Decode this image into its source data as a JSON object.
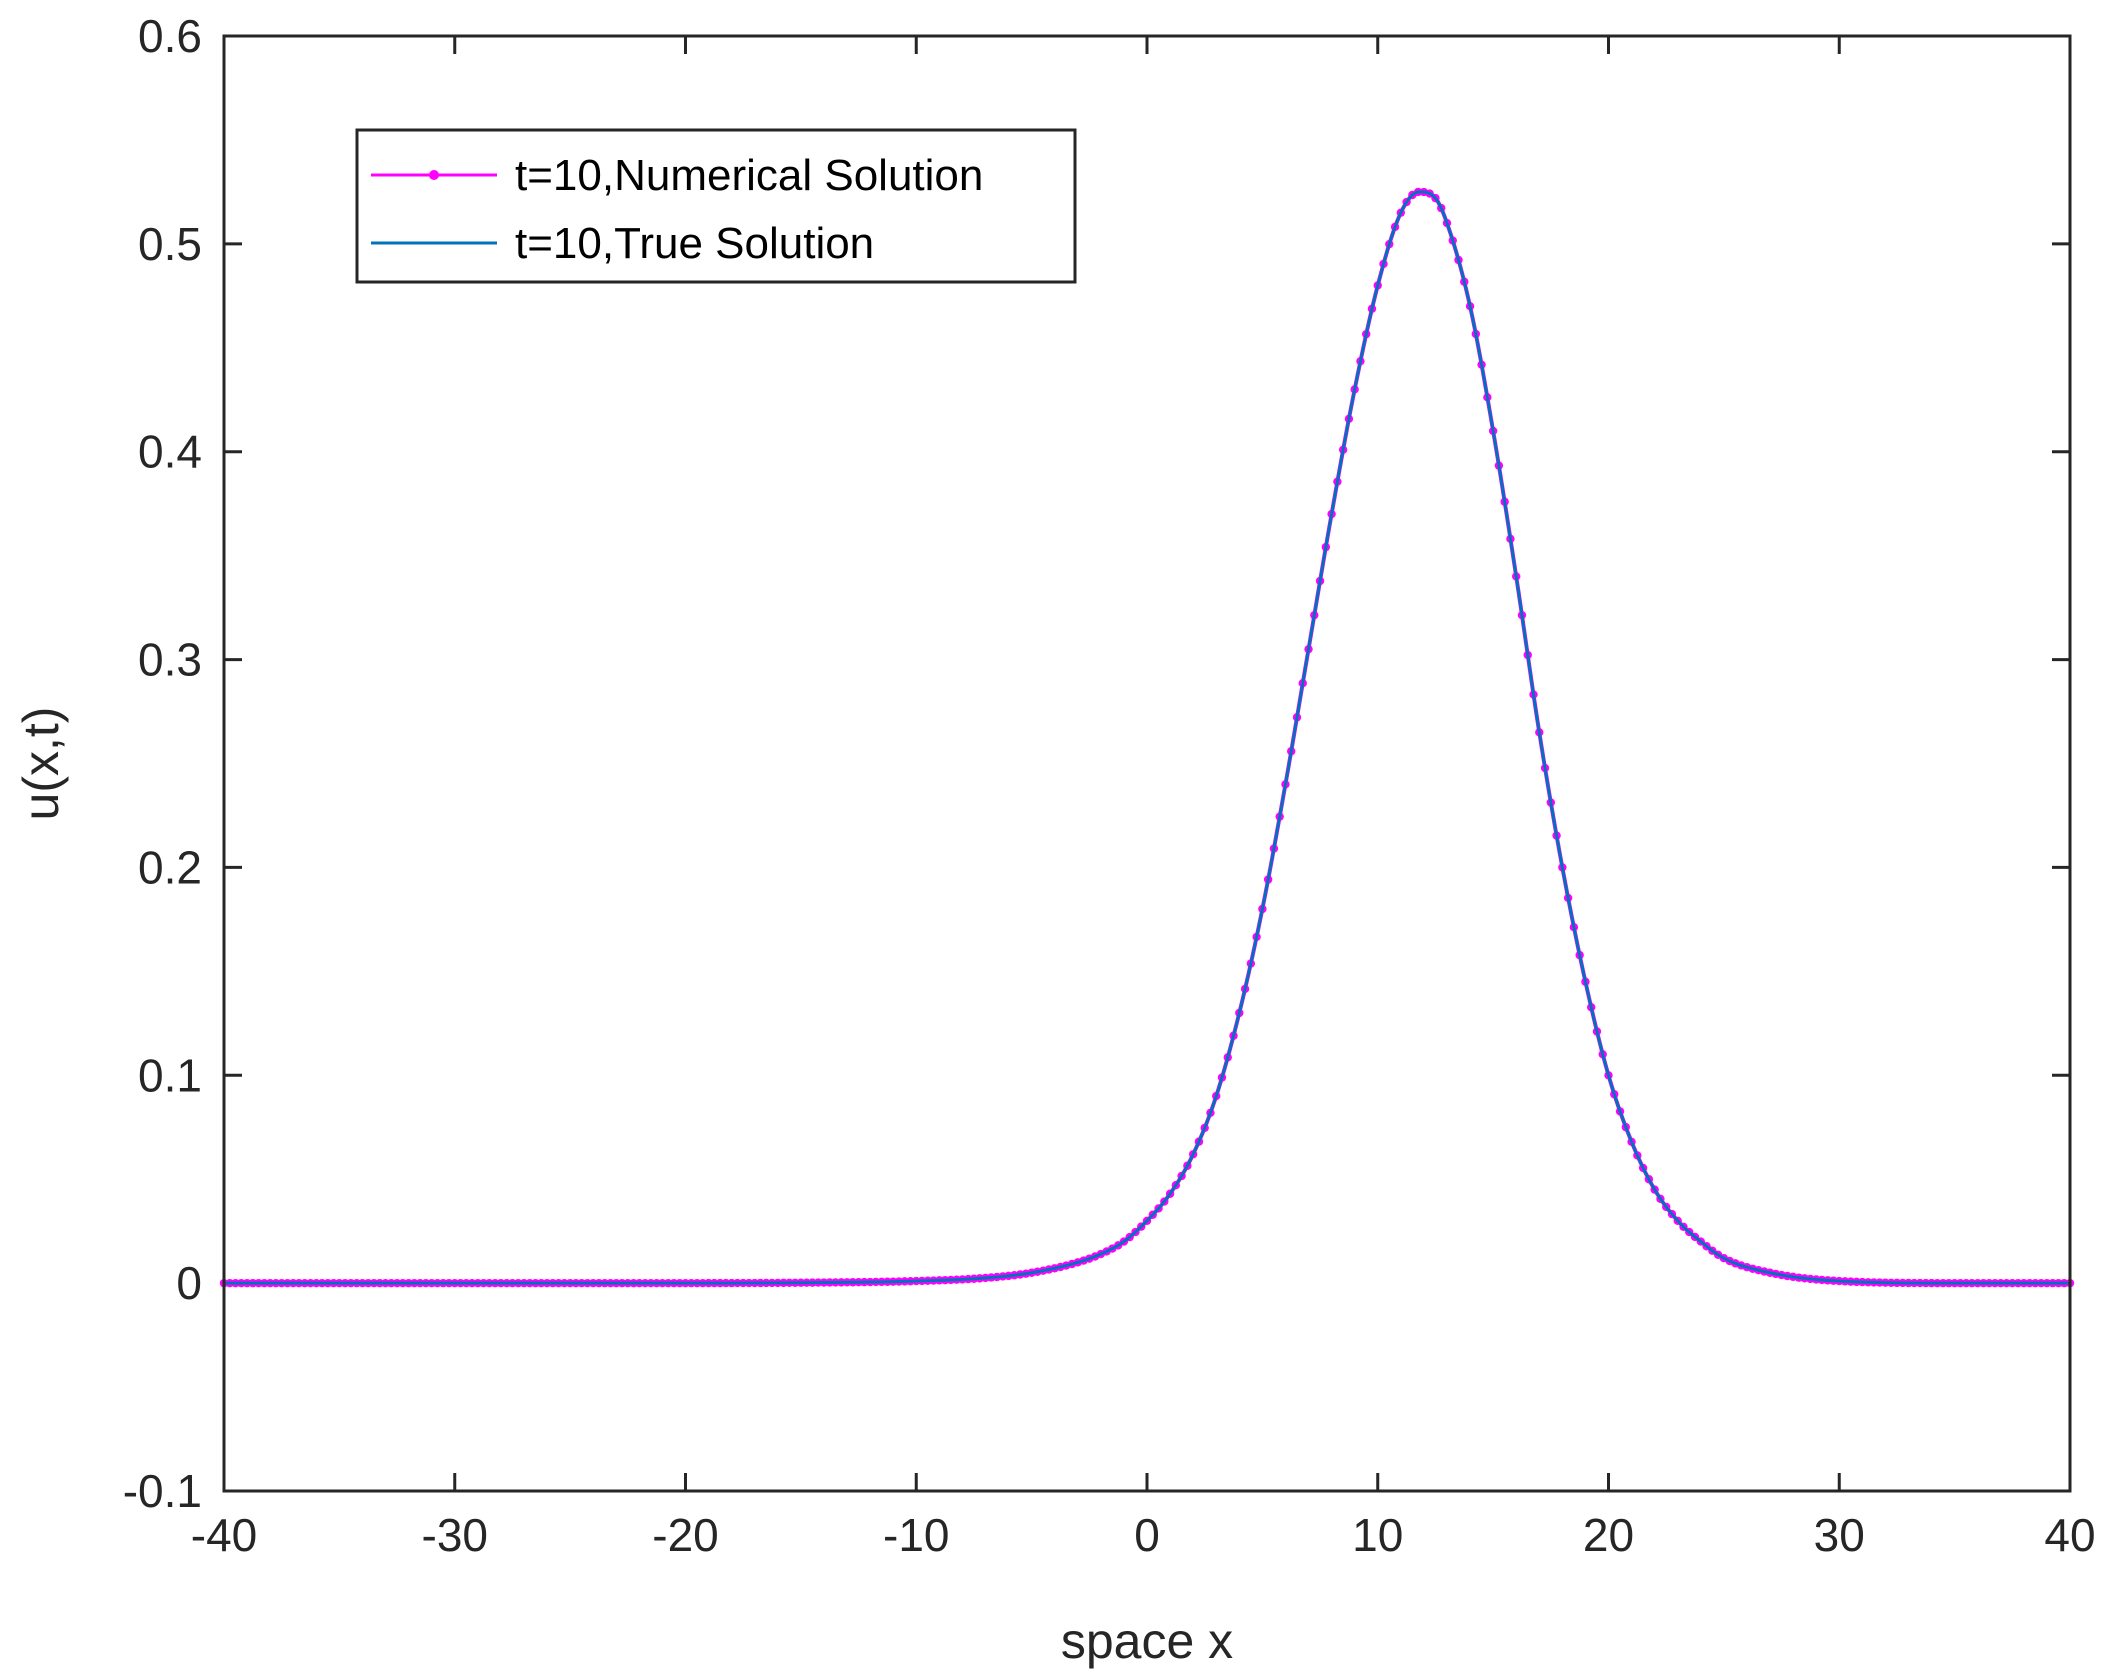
{
  "chart_data": {
    "type": "line",
    "title": "",
    "xlabel": "space x",
    "ylabel": "u(x,t)",
    "xlim": [
      -40,
      40
    ],
    "ylim": [
      -0.1,
      0.6
    ],
    "xticks": [
      -40,
      -30,
      -20,
      -10,
      0,
      10,
      20,
      30,
      40
    ],
    "yticks": [
      -0.1,
      0,
      0.1,
      0.2,
      0.3,
      0.4,
      0.5,
      0.6
    ],
    "xtick_labels": [
      "-40",
      "-30",
      "-20",
      "-10",
      "0",
      "10",
      "20",
      "30",
      "40"
    ],
    "ytick_labels": [
      "-0.1",
      "0",
      "0.1",
      "0.2",
      "0.3",
      "0.4",
      "0.5",
      "0.6"
    ],
    "grid": false,
    "legend_position": "top-left",
    "series": [
      {
        "name": "t=10,Numerical Solution",
        "color": "#ff00ff",
        "style": "line-with-dot-markers",
        "x": [
          -40,
          -30,
          -20,
          -15,
          -10,
          -7,
          -5,
          -3,
          -2,
          -1,
          0,
          1,
          2,
          3,
          4,
          5,
          6,
          7,
          8,
          9,
          10,
          11,
          11.8,
          12.5,
          13,
          14,
          15,
          16,
          17,
          18,
          19,
          20,
          21,
          22,
          23,
          24,
          25,
          27,
          30,
          35,
          40
        ],
        "y": [
          0,
          0,
          0,
          0.0002,
          0.001,
          0.0025,
          0.005,
          0.01,
          0.014,
          0.02,
          0.03,
          0.043,
          0.062,
          0.09,
          0.13,
          0.18,
          0.24,
          0.305,
          0.37,
          0.43,
          0.48,
          0.515,
          0.525,
          0.522,
          0.51,
          0.47,
          0.41,
          0.34,
          0.265,
          0.2,
          0.145,
          0.1,
          0.068,
          0.045,
          0.03,
          0.02,
          0.012,
          0.005,
          0.001,
          0,
          0
        ]
      },
      {
        "name": "t=10,True Solution",
        "color": "#0072bd",
        "style": "line",
        "x": [
          -40,
          -30,
          -20,
          -15,
          -10,
          -7,
          -5,
          -3,
          -2,
          -1,
          0,
          1,
          2,
          3,
          4,
          5,
          6,
          7,
          8,
          9,
          10,
          11,
          11.8,
          12.5,
          13,
          14,
          15,
          16,
          17,
          18,
          19,
          20,
          21,
          22,
          23,
          24,
          25,
          27,
          30,
          35,
          40
        ],
        "y": [
          0,
          0,
          0,
          0.0002,
          0.001,
          0.0025,
          0.005,
          0.01,
          0.014,
          0.02,
          0.03,
          0.043,
          0.062,
          0.09,
          0.13,
          0.18,
          0.24,
          0.305,
          0.37,
          0.43,
          0.48,
          0.515,
          0.525,
          0.522,
          0.51,
          0.47,
          0.41,
          0.34,
          0.265,
          0.2,
          0.145,
          0.1,
          0.068,
          0.045,
          0.03,
          0.02,
          0.012,
          0.005,
          0.001,
          0,
          0
        ]
      }
    ]
  }
}
